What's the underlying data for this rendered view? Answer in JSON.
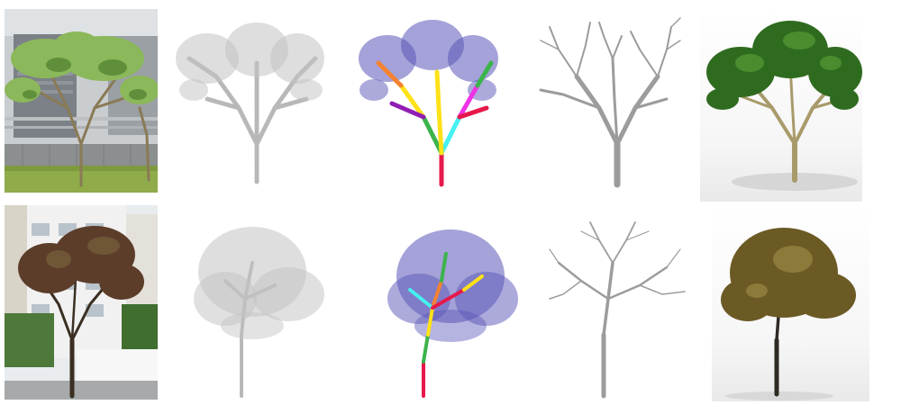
{
  "figure": {
    "rows": [
      {
        "id": "frangipani",
        "panels": [
          "photo",
          "point-cloud",
          "segmented-point-cloud",
          "branch-skeleton",
          "textured-render"
        ],
        "colors": {
          "foliage": "#2f6b1f",
          "bark": "#a89a6a",
          "gray": "#b4b4b4",
          "points": "#5a56b8"
        }
      },
      {
        "id": "street-tree",
        "panels": [
          "photo",
          "point-cloud",
          "segmented-point-cloud",
          "branch-skeleton",
          "textured-render"
        ],
        "colors": {
          "foliage": "#6b5a24",
          "bark": "#2d2a22",
          "gray": "#b4b4b4",
          "points": "#5a56b8"
        }
      }
    ],
    "segment_colors": [
      "#e6194b",
      "#3cb44b",
      "#ffe119",
      "#4363d8",
      "#f58231",
      "#911eb4",
      "#46f0f0",
      "#f032e6"
    ]
  }
}
